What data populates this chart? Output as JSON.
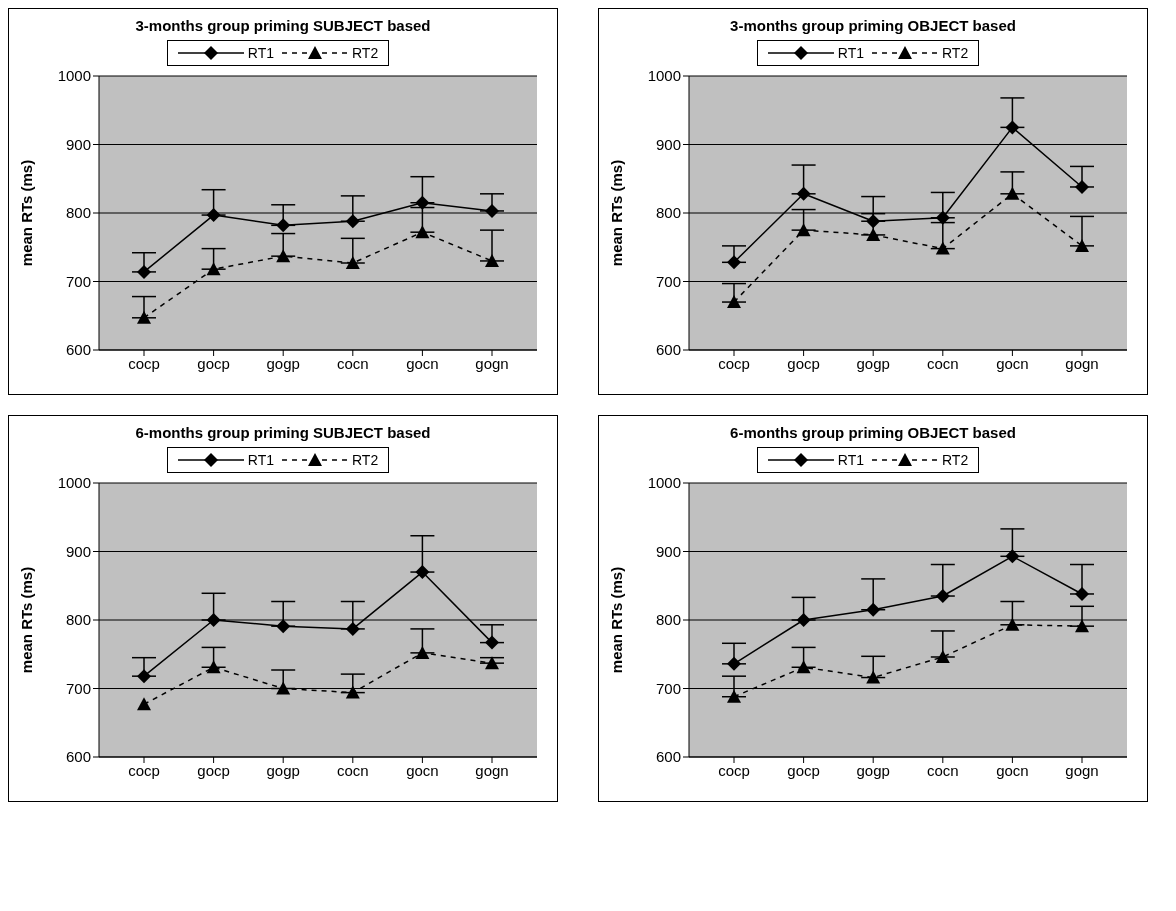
{
  "chart_data": [
    {
      "type": "line",
      "title": "3-months group priming SUBJECT based",
      "ylabel": "mean RTs (ms)",
      "categories": [
        "cocp",
        "gocp",
        "gogp",
        "cocn",
        "gocn",
        "gogn"
      ],
      "ylim": [
        600,
        1000
      ],
      "yticks": [
        600,
        700,
        800,
        900,
        1000
      ],
      "grid": "y",
      "legend": "top",
      "series": [
        {
          "name": "RT1",
          "color": "#000000",
          "marker": "diamond",
          "line_style": "solid",
          "values": [
            714,
            797,
            782,
            788,
            815,
            803
          ],
          "errors": [
            [
              714,
              742
            ],
            [
              797,
              834
            ],
            [
              782,
              812
            ],
            [
              788,
              825
            ],
            [
              815,
              853
            ],
            [
              803,
              828
            ]
          ]
        },
        {
          "name": "RT2",
          "color": "#000000",
          "marker": "triangle",
          "line_style": "dashed",
          "values": [
            647,
            718,
            737,
            727,
            772,
            730
          ],
          "errors": [
            [
              647,
              678
            ],
            [
              718,
              748
            ],
            [
              737,
              770
            ],
            [
              727,
              763
            ],
            [
              772,
              808
            ],
            [
              730,
              775
            ]
          ]
        }
      ]
    },
    {
      "type": "line",
      "title": "3-months group priming OBJECT based",
      "ylabel": "mean RTs (ms)",
      "categories": [
        "cocp",
        "gocp",
        "gogp",
        "cocn",
        "gocn",
        "gogn"
      ],
      "ylim": [
        600,
        1000
      ],
      "yticks": [
        600,
        700,
        800,
        900,
        1000
      ],
      "grid": "y",
      "legend": "top",
      "series": [
        {
          "name": "RT1",
          "color": "#000000",
          "marker": "diamond",
          "line_style": "solid",
          "values": [
            728,
            828,
            788,
            793,
            925,
            838
          ],
          "errors": [
            [
              728,
              752
            ],
            [
              828,
              870
            ],
            [
              788,
              824
            ],
            [
              793,
              830
            ],
            [
              925,
              968
            ],
            [
              838,
              868
            ]
          ]
        },
        {
          "name": "RT2",
          "color": "#000000",
          "marker": "triangle",
          "line_style": "dashed",
          "values": [
            670,
            775,
            768,
            748,
            828,
            752
          ],
          "errors": [
            [
              670,
              697
            ],
            [
              775,
              805
            ],
            [
              768,
              799
            ],
            [
              748,
              786
            ],
            [
              828,
              860
            ],
            [
              752,
              795
            ]
          ]
        }
      ]
    },
    {
      "type": "line",
      "title": "6-months group priming SUBJECT based",
      "ylabel": "mean RTs (ms)",
      "categories": [
        "cocp",
        "gocp",
        "gogp",
        "cocn",
        "gocn",
        "gogn"
      ],
      "ylim": [
        600,
        1000
      ],
      "yticks": [
        600,
        700,
        800,
        900,
        1000
      ],
      "grid": "y",
      "legend": "top",
      "series": [
        {
          "name": "RT1",
          "color": "#000000",
          "marker": "diamond",
          "line_style": "solid",
          "values": [
            718,
            800,
            791,
            787,
            870,
            767
          ],
          "errors": [
            [
              718,
              745
            ],
            [
              800,
              839
            ],
            [
              791,
              827
            ],
            [
              787,
              827
            ],
            [
              870,
              923
            ],
            [
              767,
              793
            ]
          ]
        },
        {
          "name": "RT2",
          "color": "#000000",
          "marker": "triangle",
          "line_style": "dashed",
          "values": [
            677,
            731,
            700,
            694,
            752,
            737
          ],
          "errors": [
            null,
            [
              731,
              760
            ],
            [
              700,
              727
            ],
            [
              694,
              721
            ],
            [
              752,
              787
            ],
            [
              737,
              745
            ]
          ]
        }
      ]
    },
    {
      "type": "line",
      "title": "6-months group priming OBJECT based",
      "ylabel": "mean RTs (ms)",
      "categories": [
        "cocp",
        "gocp",
        "gogp",
        "cocn",
        "gocn",
        "gogn"
      ],
      "ylim": [
        600,
        1000
      ],
      "yticks": [
        600,
        700,
        800,
        900,
        1000
      ],
      "grid": "y",
      "legend": "top",
      "series": [
        {
          "name": "RT1",
          "color": "#000000",
          "marker": "diamond",
          "line_style": "solid",
          "values": [
            736,
            800,
            815,
            835,
            893,
            838
          ],
          "errors": [
            [
              736,
              766
            ],
            [
              800,
              833
            ],
            [
              815,
              860
            ],
            [
              835,
              881
            ],
            [
              893,
              933
            ],
            [
              838,
              881
            ]
          ]
        },
        {
          "name": "RT2",
          "color": "#000000",
          "marker": "triangle",
          "line_style": "dashed",
          "values": [
            688,
            731,
            716,
            746,
            793,
            791
          ],
          "errors": [
            [
              688,
              718
            ],
            [
              731,
              760
            ],
            [
              716,
              747
            ],
            [
              746,
              784
            ],
            [
              793,
              827
            ],
            [
              791,
              820
            ]
          ]
        }
      ]
    }
  ]
}
